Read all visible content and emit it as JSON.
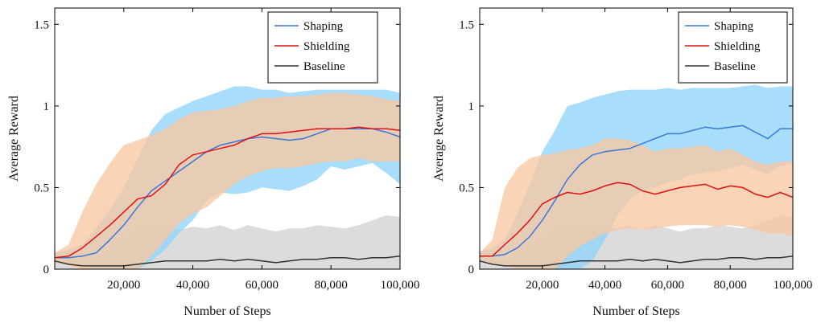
{
  "chart_data": [
    {
      "type": "line",
      "title": "",
      "xlabel": "Number of Steps",
      "ylabel": "Average Reward",
      "xlim": [
        0,
        100000
      ],
      "ylim": [
        0,
        1.6
      ],
      "xticks": [
        20000,
        40000,
        60000,
        80000,
        100000
      ],
      "xtick_labels": [
        "20,000",
        "40,000",
        "60,000",
        "80,000",
        "100,000"
      ],
      "yticks": [
        0,
        0.5,
        1,
        1.5
      ],
      "ytick_labels": [
        "0",
        "0.5",
        "1",
        "1.5"
      ],
      "grid": false,
      "legend_position": "top-right",
      "x": [
        0,
        4000,
        8000,
        12000,
        16000,
        20000,
        24000,
        28000,
        32000,
        36000,
        40000,
        44000,
        48000,
        52000,
        56000,
        60000,
        64000,
        68000,
        72000,
        76000,
        80000,
        84000,
        88000,
        92000,
        96000,
        100000
      ],
      "series": [
        {
          "name": "Shaping",
          "color": "#3a78d8",
          "band_color": "#8fd4fb",
          "values": [
            0.07,
            0.07,
            0.08,
            0.1,
            0.18,
            0.27,
            0.38,
            0.48,
            0.54,
            0.6,
            0.66,
            0.72,
            0.76,
            0.78,
            0.8,
            0.81,
            0.8,
            0.79,
            0.8,
            0.83,
            0.86,
            0.86,
            0.86,
            0.86,
            0.84,
            0.81
          ],
          "lower": [
            0.04,
            0.03,
            0.02,
            0.0,
            0.0,
            0.0,
            0.0,
            0.05,
            0.12,
            0.22,
            0.3,
            0.42,
            0.47,
            0.46,
            0.47,
            0.5,
            0.49,
            0.48,
            0.51,
            0.55,
            0.63,
            0.61,
            0.63,
            0.65,
            0.59,
            0.52
          ],
          "upper": [
            0.1,
            0.12,
            0.15,
            0.25,
            0.37,
            0.5,
            0.68,
            0.85,
            0.95,
            0.99,
            1.03,
            1.06,
            1.09,
            1.12,
            1.12,
            1.1,
            1.1,
            1.08,
            1.09,
            1.1,
            1.1,
            1.1,
            1.1,
            1.1,
            1.1,
            1.08
          ]
        },
        {
          "name": "Shielding",
          "color": "#e01010",
          "band_color": "#f9c8a2",
          "values": [
            0.07,
            0.08,
            0.13,
            0.2,
            0.27,
            0.35,
            0.43,
            0.45,
            0.52,
            0.64,
            0.7,
            0.72,
            0.74,
            0.76,
            0.8,
            0.83,
            0.83,
            0.84,
            0.85,
            0.86,
            0.86,
            0.86,
            0.87,
            0.86,
            0.86,
            0.85
          ],
          "lower": [
            0.04,
            0.02,
            0.0,
            0.0,
            0.0,
            0.0,
            0.0,
            0.08,
            0.18,
            0.28,
            0.34,
            0.38,
            0.45,
            0.52,
            0.57,
            0.6,
            0.62,
            0.62,
            0.63,
            0.65,
            0.66,
            0.66,
            0.68,
            0.66,
            0.66,
            0.66
          ],
          "upper": [
            0.1,
            0.15,
            0.35,
            0.52,
            0.65,
            0.76,
            0.79,
            0.82,
            0.86,
            0.92,
            0.96,
            0.97,
            0.98,
            1.0,
            1.03,
            1.05,
            1.05,
            1.06,
            1.06,
            1.07,
            1.08,
            1.08,
            1.07,
            1.06,
            1.04,
            1.03
          ]
        },
        {
          "name": "Baseline",
          "color": "#333333",
          "band_color": "#d2d2d2",
          "values": [
            0.05,
            0.03,
            0.02,
            0.02,
            0.02,
            0.02,
            0.03,
            0.04,
            0.05,
            0.05,
            0.05,
            0.05,
            0.06,
            0.05,
            0.06,
            0.05,
            0.04,
            0.05,
            0.06,
            0.06,
            0.07,
            0.07,
            0.06,
            0.07,
            0.07,
            0.08
          ],
          "lower": [
            0.0,
            0.0,
            0.0,
            0.0,
            0.0,
            0.0,
            0.0,
            0.0,
            0.0,
            0.0,
            0.0,
            0.0,
            0.0,
            0.0,
            0.0,
            0.0,
            0.0,
            0.0,
            0.0,
            0.0,
            0.0,
            0.0,
            0.0,
            0.0,
            0.0,
            0.0
          ],
          "upper": [
            0.08,
            0.07,
            0.06,
            0.08,
            0.12,
            0.18,
            0.24,
            0.27,
            0.27,
            0.24,
            0.26,
            0.25,
            0.27,
            0.24,
            0.27,
            0.25,
            0.23,
            0.25,
            0.25,
            0.27,
            0.26,
            0.25,
            0.27,
            0.3,
            0.33,
            0.32
          ]
        }
      ]
    },
    {
      "type": "line",
      "title": "",
      "xlabel": "Number of Steps",
      "ylabel": "Average Reward",
      "xlim": [
        0,
        100000
      ],
      "ylim": [
        0,
        1.6
      ],
      "xticks": [
        20000,
        40000,
        60000,
        80000,
        100000
      ],
      "xtick_labels": [
        "20,000",
        "40,000",
        "60,000",
        "80,000",
        "100,000"
      ],
      "yticks": [
        0,
        0.5,
        1,
        1.5
      ],
      "ytick_labels": [
        "0",
        "0.5",
        "1",
        "1.5"
      ],
      "grid": false,
      "legend_position": "top-right",
      "x": [
        0,
        4000,
        8000,
        12000,
        16000,
        20000,
        24000,
        28000,
        32000,
        36000,
        40000,
        44000,
        48000,
        52000,
        56000,
        60000,
        64000,
        68000,
        72000,
        76000,
        80000,
        84000,
        88000,
        92000,
        96000,
        100000
      ],
      "series": [
        {
          "name": "Shaping",
          "color": "#3a78d8",
          "band_color": "#8fd4fb",
          "values": [
            0.08,
            0.08,
            0.09,
            0.13,
            0.2,
            0.3,
            0.42,
            0.55,
            0.64,
            0.7,
            0.72,
            0.73,
            0.74,
            0.77,
            0.8,
            0.83,
            0.83,
            0.85,
            0.87,
            0.86,
            0.87,
            0.88,
            0.84,
            0.8,
            0.86,
            0.86
          ],
          "lower": [
            0.05,
            0.04,
            0.03,
            0.0,
            0.0,
            0.0,
            0.0,
            0.0,
            0.0,
            0.05,
            0.18,
            0.33,
            0.43,
            0.48,
            0.5,
            0.53,
            0.55,
            0.58,
            0.59,
            0.6,
            0.62,
            0.64,
            0.61,
            0.58,
            0.63,
            0.65
          ],
          "upper": [
            0.11,
            0.13,
            0.18,
            0.34,
            0.52,
            0.72,
            0.85,
            1.0,
            1.02,
            1.05,
            1.07,
            1.09,
            1.1,
            1.1,
            1.1,
            1.11,
            1.1,
            1.11,
            1.11,
            1.11,
            1.11,
            1.12,
            1.13,
            1.11,
            1.12,
            1.12
          ]
        },
        {
          "name": "Shielding",
          "color": "#e01010",
          "band_color": "#f9c8a2",
          "values": [
            0.08,
            0.08,
            0.15,
            0.22,
            0.3,
            0.4,
            0.44,
            0.47,
            0.46,
            0.48,
            0.51,
            0.53,
            0.52,
            0.48,
            0.46,
            0.48,
            0.5,
            0.51,
            0.52,
            0.49,
            0.51,
            0.5,
            0.46,
            0.44,
            0.47,
            0.44
          ],
          "lower": [
            0.05,
            0.03,
            0.02,
            0.0,
            0.0,
            0.0,
            0.0,
            0.08,
            0.14,
            0.18,
            0.22,
            0.24,
            0.25,
            0.24,
            0.25,
            0.26,
            0.27,
            0.27,
            0.27,
            0.26,
            0.27,
            0.26,
            0.24,
            0.22,
            0.22,
            0.2
          ],
          "upper": [
            0.1,
            0.18,
            0.5,
            0.62,
            0.68,
            0.7,
            0.71,
            0.73,
            0.74,
            0.76,
            0.8,
            0.8,
            0.79,
            0.76,
            0.72,
            0.74,
            0.74,
            0.75,
            0.76,
            0.72,
            0.74,
            0.7,
            0.66,
            0.64,
            0.66,
            0.66
          ]
        },
        {
          "name": "Baseline",
          "color": "#333333",
          "band_color": "#d2d2d2",
          "values": [
            0.05,
            0.03,
            0.02,
            0.02,
            0.02,
            0.02,
            0.03,
            0.04,
            0.05,
            0.05,
            0.05,
            0.05,
            0.06,
            0.05,
            0.06,
            0.05,
            0.04,
            0.05,
            0.06,
            0.06,
            0.07,
            0.07,
            0.06,
            0.07,
            0.07,
            0.08
          ],
          "lower": [
            0.0,
            0.0,
            0.0,
            0.0,
            0.0,
            0.0,
            0.0,
            0.0,
            0.0,
            0.0,
            0.0,
            0.0,
            0.0,
            0.0,
            0.0,
            0.0,
            0.0,
            0.0,
            0.0,
            0.0,
            0.0,
            0.0,
            0.0,
            0.0,
            0.0,
            0.0
          ],
          "upper": [
            0.08,
            0.07,
            0.06,
            0.08,
            0.12,
            0.18,
            0.24,
            0.27,
            0.27,
            0.24,
            0.26,
            0.25,
            0.27,
            0.24,
            0.27,
            0.25,
            0.23,
            0.25,
            0.25,
            0.27,
            0.26,
            0.25,
            0.27,
            0.3,
            0.33,
            0.32
          ]
        }
      ]
    }
  ]
}
